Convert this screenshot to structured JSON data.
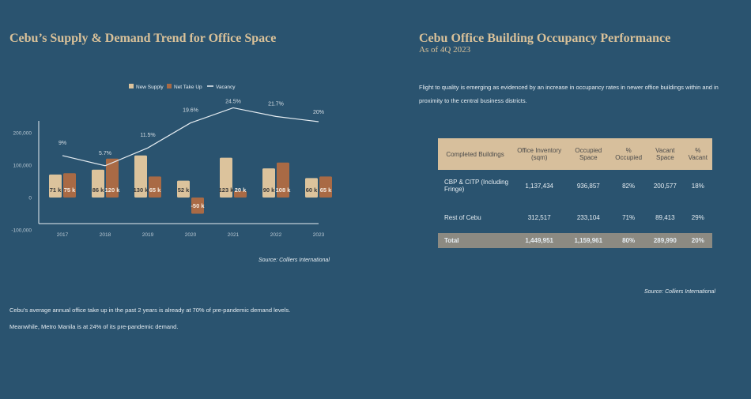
{
  "left": {
    "title": "Cebu’s Supply & Demand Trend for Office Space",
    "source": "Source: Colliers International",
    "notes": [
      "Cebu’s average annual office take up in the past 2 years is already at 70% of pre-pandemic demand levels.",
      "Meanwhile, Metro Manila is at 24% of its pre-pandemic demand."
    ]
  },
  "chart_data": {
    "type": "bar",
    "title": "Cebu’s Supply & Demand Trend for Office Space",
    "categories": [
      "2017",
      "2018",
      "2019",
      "2020",
      "2021",
      "2022",
      "2023"
    ],
    "series": [
      {
        "name": "New Supply",
        "type": "bar",
        "color": "#dcc39c",
        "values": [
          71000,
          86000,
          130000,
          52000,
          123000,
          90000,
          60000
        ],
        "labels": [
          "71 k",
          "86 k",
          "130 k",
          "52 k",
          "123 k",
          "90 k",
          "60 k"
        ]
      },
      {
        "name": "Net Take Up",
        "type": "bar",
        "color": "#a96a45",
        "values": [
          75000,
          120000,
          65000,
          -50000,
          20000,
          108000,
          65000
        ],
        "labels": [
          "75 k",
          "120 k",
          "65 k",
          "-50 k",
          "20 k",
          "108 k",
          "65 k"
        ]
      },
      {
        "name": "Vacancy",
        "type": "line",
        "color": "#e6edf2",
        "values": [
          9,
          5.7,
          11.5,
          19.6,
          24.5,
          21.7,
          20
        ],
        "labels": [
          "9%",
          "5.7%",
          "11.5%",
          "19.6%",
          "24.5%",
          "21.7%",
          "20%"
        ]
      }
    ],
    "yticks": [
      "200,000",
      "100,000",
      "0",
      "-100,000"
    ],
    "ytick_values": [
      200000,
      100000,
      0,
      -100000
    ],
    "ylim": [
      -100000,
      250000
    ],
    "legend": "top"
  },
  "right": {
    "title": "Cebu Office Building Occupancy Performance",
    "subtitle": "As of 4Q 2023",
    "intro": "Flight to quality is emerging as evidenced by an increase in occupancy rates in newer office buildings within and in proximity to the central business districts.",
    "headers": [
      "Completed Buildings",
      "Office Inventory (sqm)",
      "Occupied Space",
      "% Occupied",
      "Vacant Space",
      "% Vacant"
    ],
    "rows": [
      [
        "CBP & CITP (Including Fringe)",
        "1,137,434",
        "936,857",
        "82%",
        "200,577",
        "18%"
      ],
      [
        "Rest of Cebu",
        "312,517",
        "233,104",
        "71%",
        "89,413",
        "29%"
      ]
    ],
    "total": [
      "Total",
      "1,449,951",
      "1,159,961",
      "80%",
      "289,990",
      "20%"
    ],
    "source": "Source: Colliers International"
  }
}
